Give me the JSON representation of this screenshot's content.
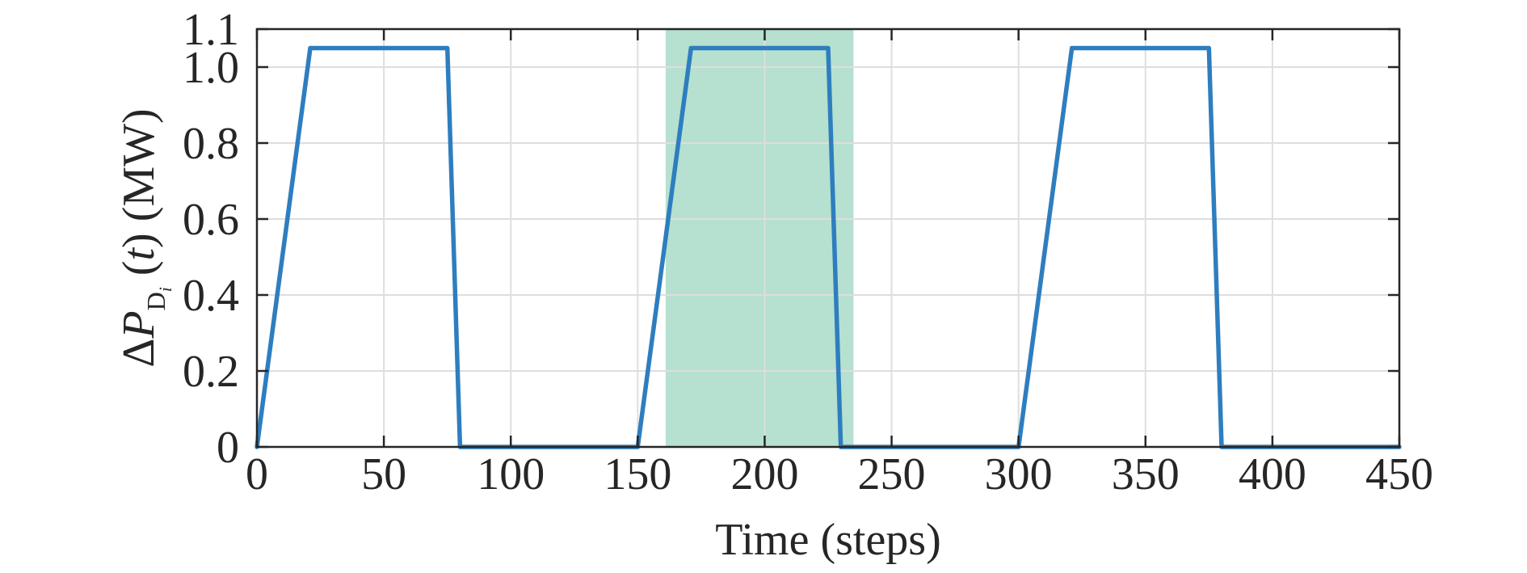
{
  "chart_data": {
    "type": "line",
    "title": "",
    "xlabel": "Time (steps)",
    "ylabel": {
      "prefix": "ΔP",
      "subscript": "D",
      "sub_subscript": "i",
      "rest_before": " (",
      "italic_var": "t",
      "rest_after": ") (MW)"
    },
    "xlim": [
      0,
      450
    ],
    "ylim": [
      0,
      1.1
    ],
    "xticks": [
      0,
      50,
      100,
      150,
      200,
      250,
      300,
      350,
      400,
      450
    ],
    "xtick_labels": [
      "0",
      "50",
      "100",
      "150",
      "200",
      "250",
      "300",
      "350",
      "400",
      "450"
    ],
    "yticks": [
      0,
      0.2,
      0.4,
      0.6,
      0.8,
      1.0,
      1.1
    ],
    "ytick_labels": [
      "0",
      "0.2",
      "0.4",
      "0.6",
      "0.8",
      "1.0",
      "1.1"
    ],
    "grid": true,
    "highlight_region": {
      "x_start": 161,
      "x_end": 235,
      "color": "#b6e0cf"
    },
    "series": [
      {
        "color": "#2e7ebf",
        "x": [
          0,
          21,
          75,
          80,
          150,
          171,
          225,
          230,
          300,
          321,
          375,
          380,
          450
        ],
        "y": [
          0,
          1.05,
          1.05,
          0,
          0,
          1.05,
          1.05,
          0,
          0,
          1.05,
          1.05,
          0,
          0
        ]
      }
    ]
  }
}
